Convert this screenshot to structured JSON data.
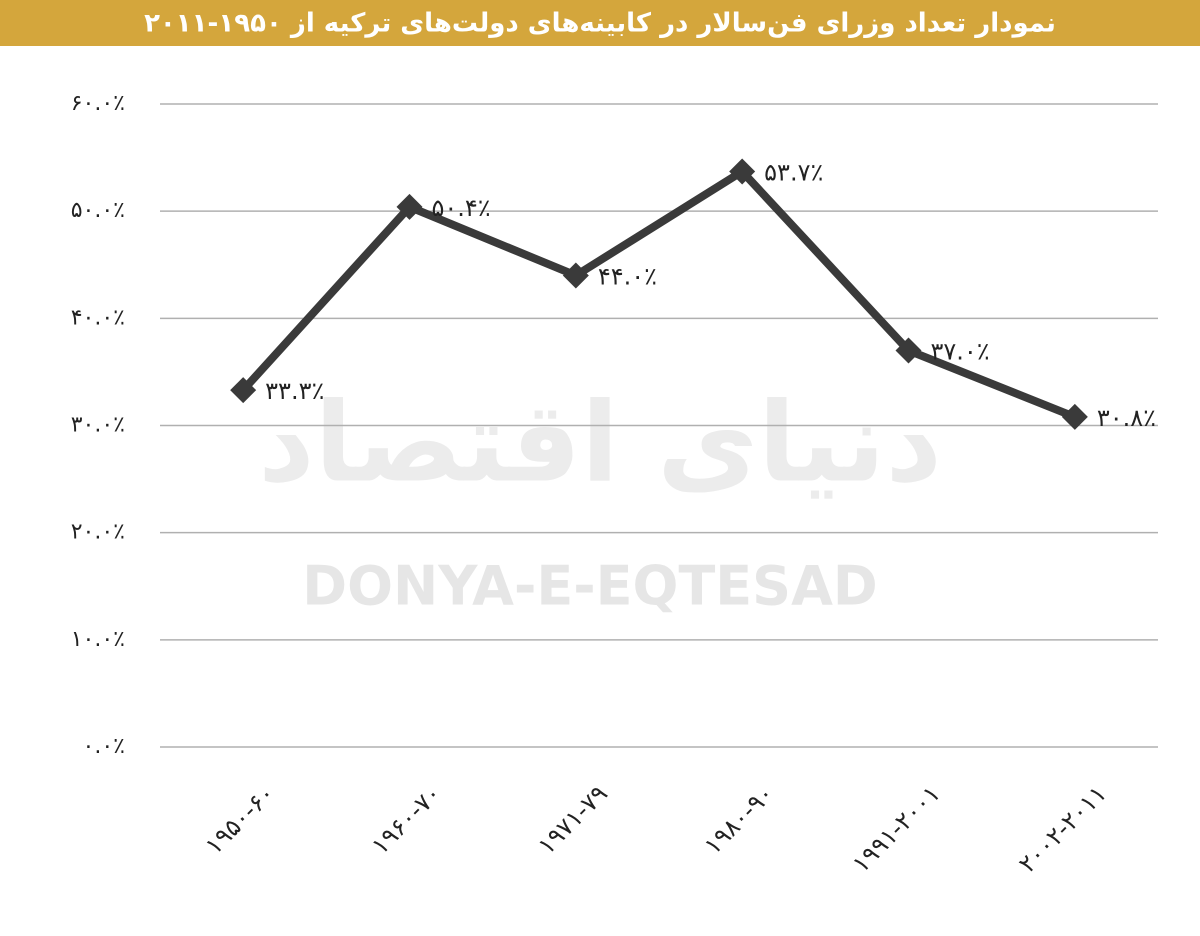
{
  "chart_data": {
    "type": "line",
    "title": "نمودار تعداد وزرای فن‌سالار در کابینه‌های دولت‌های ترکیه از ۱۹۵۰-۲۰۱۱",
    "watermark": "DONYA-E-EQTESAD",
    "watermark_fa": "دنیای اقتصاد",
    "categories": [
      "۱۹۵۰-۶۰",
      "۱۹۶۰-۷۰",
      "۱۹۷۱-۷۹",
      "۱۹۸۰-۹۰",
      "۱۹۹۱-۲۰۰۱",
      "۲۰۰۲-۲۰۱۱"
    ],
    "values": [
      33.3,
      50.4,
      44.0,
      53.7,
      37.0,
      30.8
    ],
    "value_labels": [
      "۳۳.۳٪",
      "۵۰.۴٪",
      "۴۴.۰٪",
      "۵۳.۷٪",
      "۳۷.۰٪",
      "۳۰.۸٪"
    ],
    "color": "#3a3a3a",
    "ylim": [
      0,
      60
    ],
    "yticks": [
      {
        "value": 0,
        "label": "۰.۰٪"
      },
      {
        "value": 10,
        "label": "۱۰.۰٪"
      },
      {
        "value": 20,
        "label": "۲۰.۰٪"
      },
      {
        "value": 30,
        "label": "۳۰.۰٪"
      },
      {
        "value": 40,
        "label": "۴۰.۰٪"
      },
      {
        "value": 50,
        "label": "۵۰.۰٪"
      },
      {
        "value": 60,
        "label": "۶۰.۰٪"
      }
    ],
    "grid": true
  }
}
